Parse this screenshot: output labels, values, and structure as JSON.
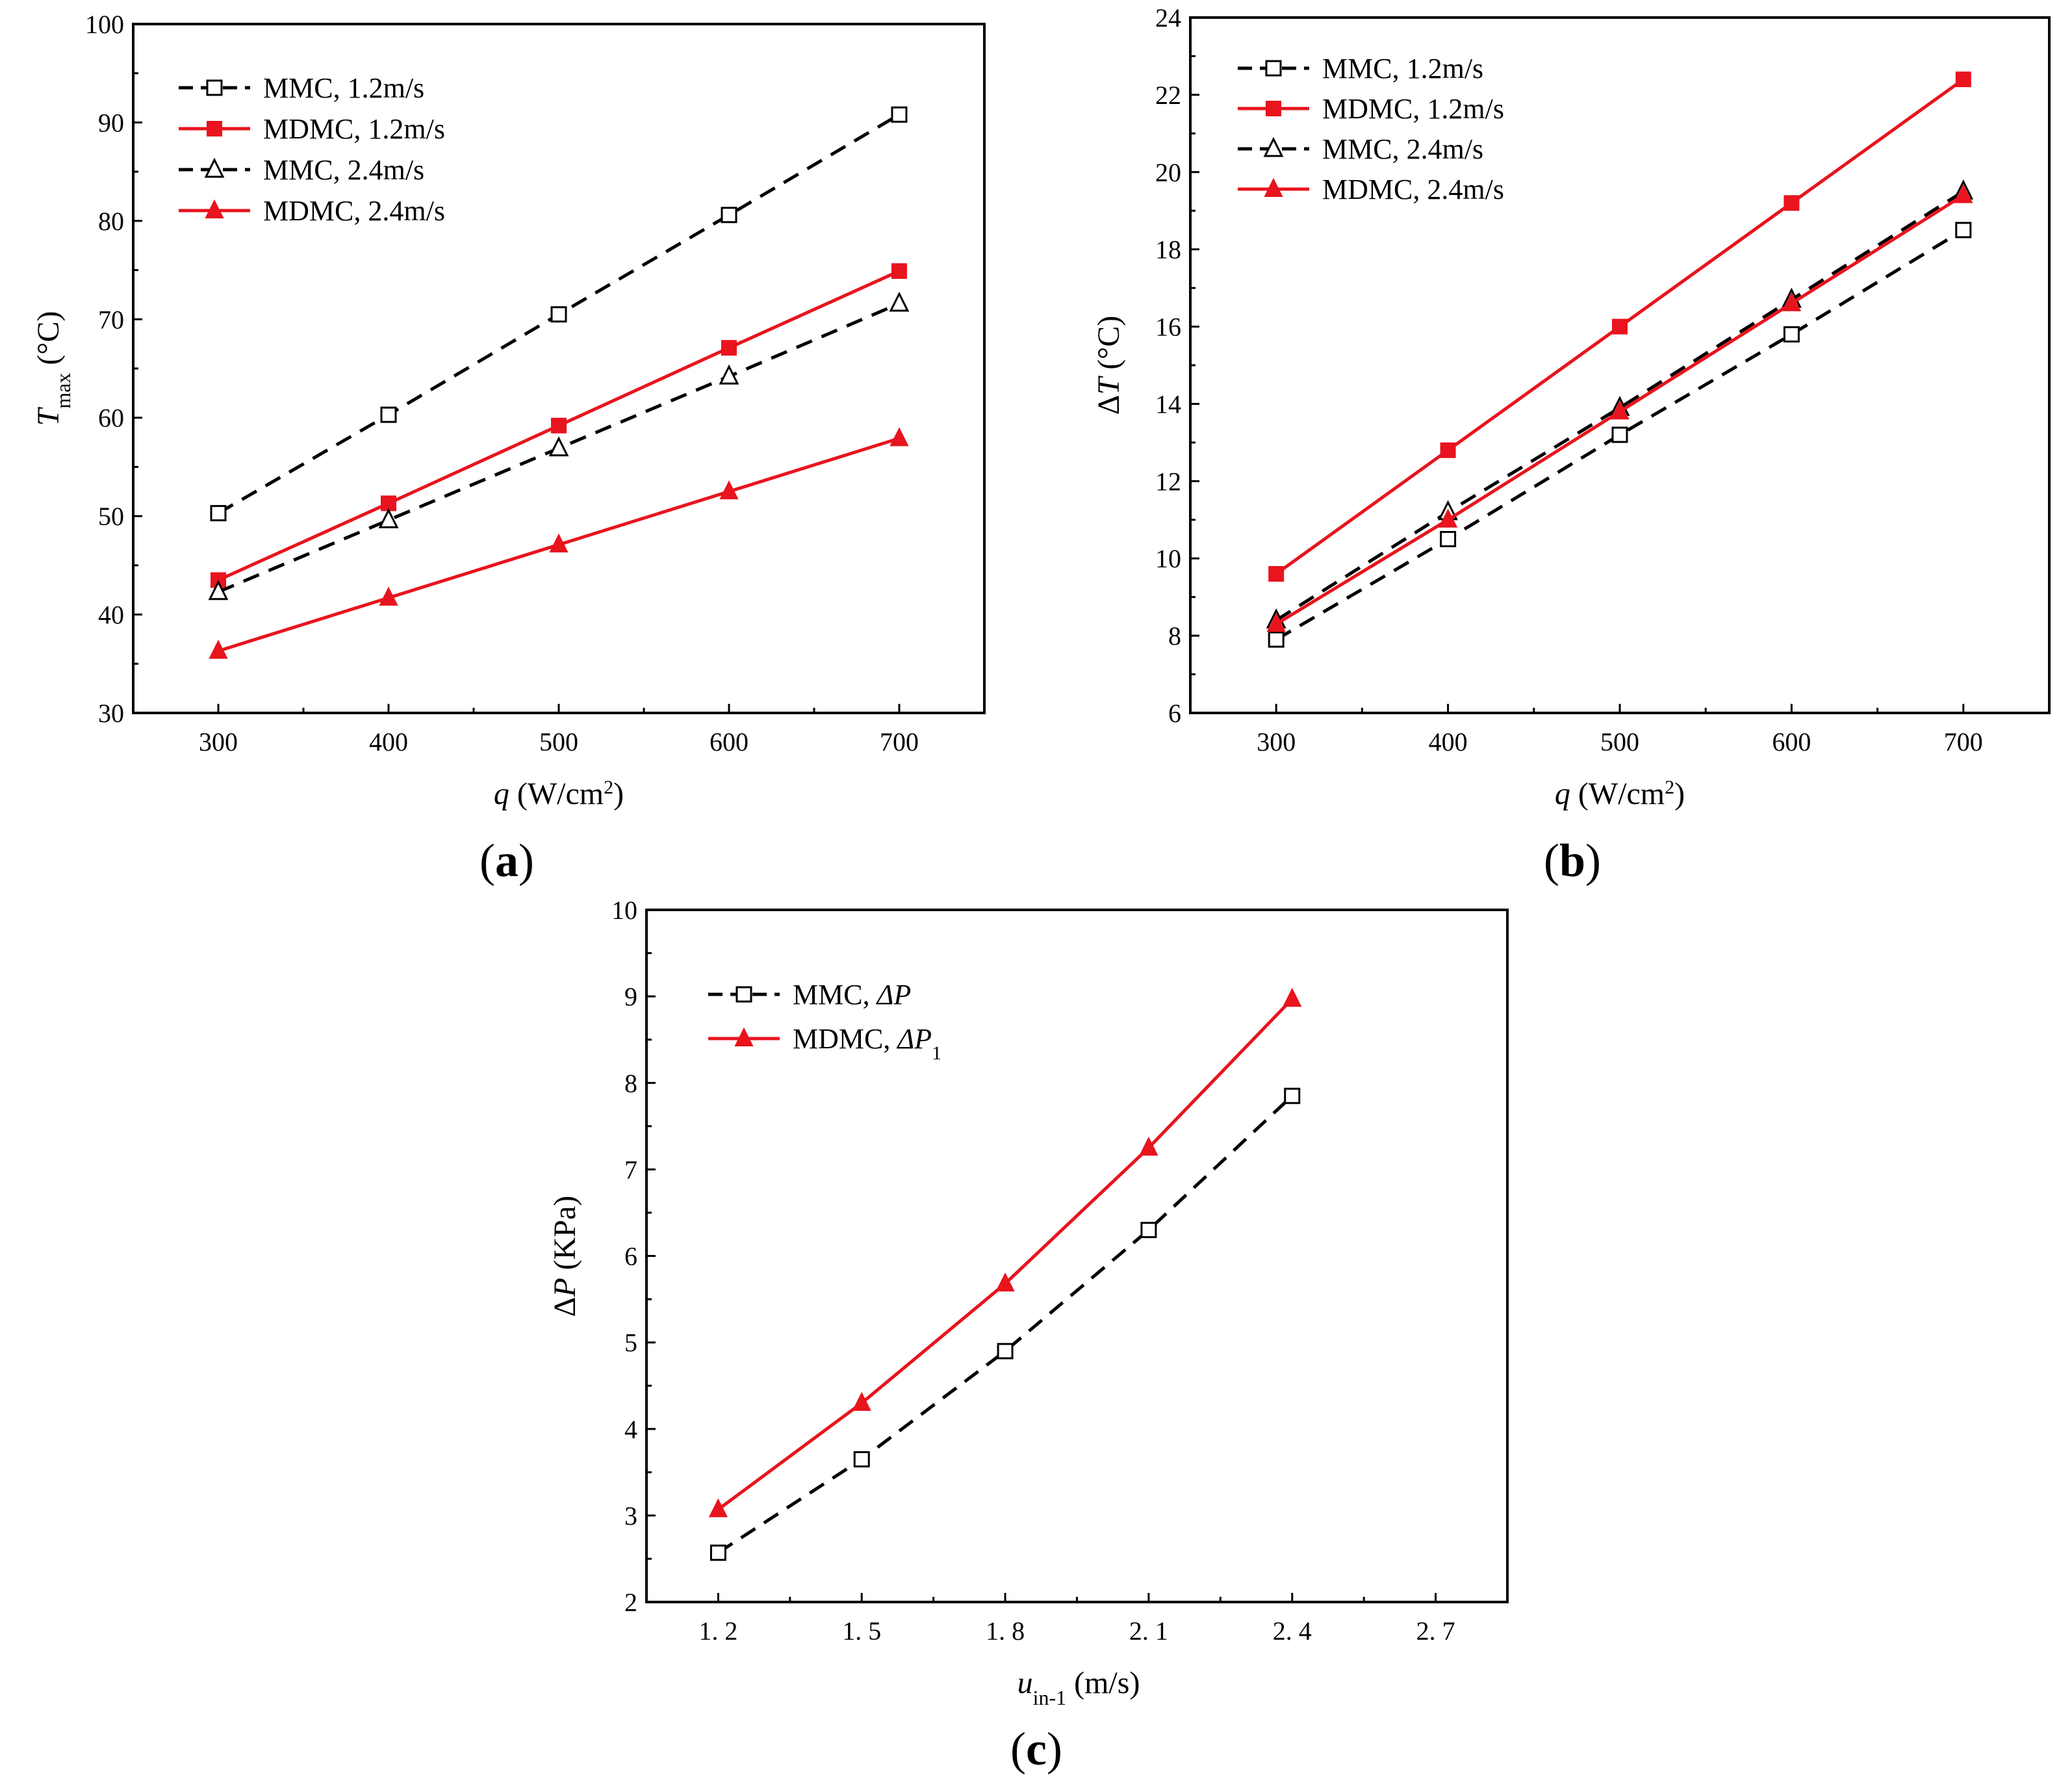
{
  "colors": {
    "mmc": "#000000",
    "mdmc": "#e8141e"
  },
  "chart_data": [
    {
      "id": "a",
      "type": "line",
      "panel_label_open": "(",
      "panel_label_letter": "a",
      "panel_label_close": ")",
      "xlabel_var": "q",
      "xlabel_units": "(W/cm",
      "xlabel_sup": "2",
      "xlabel_close": ")",
      "ylabel_var": "T",
      "ylabel_sub": "max",
      "ylabel_units": "(°C)",
      "xlim": [
        250,
        750
      ],
      "ylim": [
        30,
        100
      ],
      "x_ticks": [
        300,
        400,
        500,
        600,
        700
      ],
      "x_tick_labels": [
        "300",
        "400",
        "500",
        "600",
        "700"
      ],
      "y_ticks": [
        30,
        40,
        50,
        60,
        70,
        80,
        90,
        100
      ],
      "y_tick_labels": [
        "30",
        "40",
        "50",
        "60",
        "70",
        "80",
        "90",
        "100"
      ],
      "legend_position": "top-left",
      "series": [
        {
          "name": "MMC,  1.2m/s",
          "color_key": "mmc",
          "dash": true,
          "marker": "square-open",
          "x": [
            300,
            400,
            500,
            600,
            700
          ],
          "values": [
            50.3,
            60.3,
            70.5,
            80.6,
            90.8
          ]
        },
        {
          "name": "MDMC,  1.2m/s",
          "color_key": "mdmc",
          "dash": false,
          "marker": "square-filled",
          "x": [
            300,
            400,
            500,
            600,
            700
          ],
          "values": [
            43.5,
            51.3,
            59.2,
            67.1,
            74.9
          ]
        },
        {
          "name": "MMC,  2.4m/s",
          "color_key": "mmc",
          "dash": true,
          "marker": "triangle-open",
          "x": [
            300,
            400,
            500,
            600,
            700
          ],
          "values": [
            42.3,
            49.6,
            56.9,
            64.2,
            71.6
          ]
        },
        {
          "name": "MDMC,  2.4m/s",
          "color_key": "mdmc",
          "dash": false,
          "marker": "triangle-filled",
          "x": [
            300,
            400,
            500,
            600,
            700
          ],
          "values": [
            36.3,
            41.7,
            47.1,
            52.5,
            57.9
          ]
        }
      ]
    },
    {
      "id": "b",
      "type": "line",
      "panel_label_open": "(",
      "panel_label_letter": "b",
      "panel_label_close": ")",
      "xlabel_var": "q",
      "xlabel_units": "(W/cm",
      "xlabel_sup": "2",
      "xlabel_close": ")",
      "ylabel_prefix": "Δ",
      "ylabel_var": "T",
      "ylabel_units": "(°C)",
      "xlim": [
        250,
        750
      ],
      "ylim": [
        6,
        24
      ],
      "x_ticks": [
        300,
        400,
        500,
        600,
        700
      ],
      "x_tick_labels": [
        "300",
        "400",
        "500",
        "600",
        "700"
      ],
      "y_ticks": [
        6,
        8,
        10,
        12,
        14,
        16,
        18,
        20,
        22,
        24
      ],
      "y_tick_labels": [
        "6",
        "8",
        "10",
        "12",
        "14",
        "16",
        "18",
        "20",
        "22",
        "24"
      ],
      "legend_position": "top-left",
      "series": [
        {
          "name": "MMC, 1.2m/s",
          "color_key": "mmc",
          "dash": true,
          "marker": "square-open",
          "x": [
            300,
            400,
            500,
            600,
            700
          ],
          "values": [
            7.9,
            10.5,
            13.2,
            15.8,
            18.5
          ]
        },
        {
          "name": "MDMC, 1.2m/s",
          "color_key": "mdmc",
          "dash": false,
          "marker": "square-filled",
          "x": [
            300,
            400,
            500,
            600,
            700
          ],
          "values": [
            9.6,
            12.8,
            16.0,
            19.2,
            22.4
          ]
        },
        {
          "name": "MMC, 2.4m/s",
          "color_key": "mmc",
          "dash": true,
          "marker": "triangle-open",
          "x": [
            300,
            400,
            500,
            600,
            700
          ],
          "values": [
            8.4,
            11.2,
            13.9,
            16.7,
            19.5
          ]
        },
        {
          "name": "MDMC, 2.4m/s",
          "color_key": "mdmc",
          "dash": false,
          "marker": "triangle-filled",
          "x": [
            300,
            400,
            500,
            600,
            700
          ],
          "values": [
            8.3,
            11.0,
            13.8,
            16.6,
            19.4
          ]
        }
      ]
    },
    {
      "id": "c",
      "type": "line",
      "panel_label_open": "(",
      "panel_label_letter": "c",
      "panel_label_close": ")",
      "xlabel_var": "u",
      "xlabel_sub": "in-1",
      "xlabel_units": "(m/s)",
      "ylabel_prefix": "Δ",
      "ylabel_var": "P",
      "ylabel_units": "(KPa)",
      "xlim": [
        1.05,
        2.85
      ],
      "ylim": [
        2,
        10
      ],
      "x_ticks": [
        1.2,
        1.5,
        1.8,
        2.1,
        2.4,
        2.7
      ],
      "x_tick_labels": [
        "1. 2",
        "1. 5",
        "1. 8",
        "2. 1",
        "2. 4",
        "2. 7"
      ],
      "y_ticks": [
        2,
        3,
        4,
        5,
        6,
        7,
        8,
        9,
        10
      ],
      "y_tick_labels": [
        "2",
        "3",
        "4",
        "5",
        "6",
        "7",
        "8",
        "9",
        "10"
      ],
      "legend_position": "top-left",
      "series": [
        {
          "name": "MMC, ",
          "name_sym": "ΔP",
          "name_sub": "",
          "color_key": "mmc",
          "dash": true,
          "marker": "square-open",
          "x": [
            1.2,
            1.5,
            1.8,
            2.1,
            2.4
          ],
          "values": [
            2.57,
            3.65,
            4.9,
            6.3,
            7.85
          ]
        },
        {
          "name": "MDMC, ",
          "name_sym": "ΔP",
          "name_sub": "1",
          "color_key": "mdmc",
          "dash": false,
          "marker": "triangle-filled",
          "x": [
            1.2,
            1.5,
            1.8,
            2.1,
            2.4
          ],
          "values": [
            3.07,
            4.3,
            5.68,
            7.25,
            8.97
          ]
        }
      ]
    }
  ]
}
